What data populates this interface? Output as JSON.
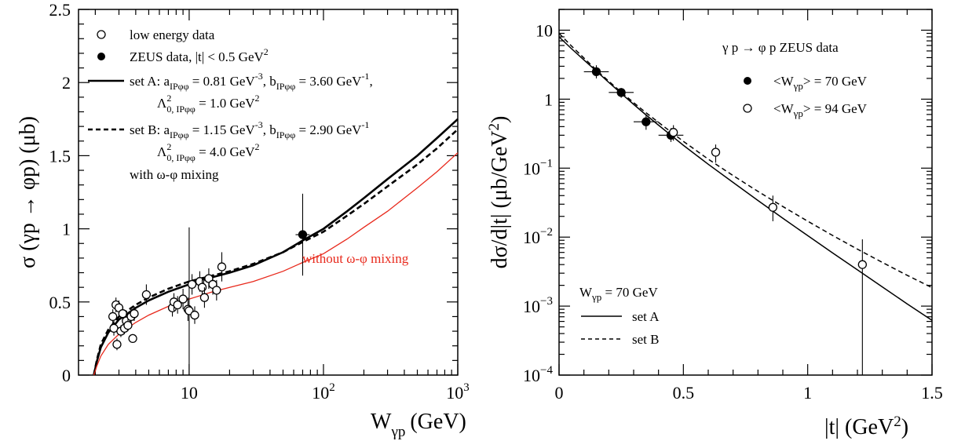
{
  "chart_data": [
    {
      "type": "scatter",
      "title": "",
      "xlabel": {
        "main": "W",
        "sub": "γp",
        "unit": "(GeV)"
      },
      "ylabel": "σ (γp → φp) (μb)",
      "xscale": "log",
      "xlim": [
        1.5,
        1000
      ],
      "ylim": [
        0,
        2.5
      ],
      "xticks": [
        {
          "v": 10,
          "label": "10",
          "sup": ""
        },
        {
          "v": 100,
          "label": "10",
          "sup": "2"
        },
        {
          "v": 1000,
          "label": "10",
          "sup": "3"
        }
      ],
      "yticks": [
        {
          "v": 0,
          "label": "0"
        },
        {
          "v": 0.5,
          "label": "0.5"
        },
        {
          "v": 1,
          "label": "1"
        },
        {
          "v": 1.5,
          "label": "1.5"
        },
        {
          "v": 2,
          "label": "2"
        },
        {
          "v": 2.5,
          "label": "2.5"
        }
      ],
      "legend": {
        "position": "top-left",
        "low_energy": "low energy data",
        "zeus": "ZEUS data,  |t| < 0.5 GeV",
        "zeus_sup": "2",
        "setA_line1": "set A: a",
        "setA_sub1": "IPφφ",
        "setA_val1": " = 0.81 GeV",
        "setA_sup1": "-3",
        "setA_b": ", b",
        "setA_sub2": "IPφφ",
        "setA_val2": " = 3.60 GeV",
        "setA_sup2": "-1",
        "setA_end": ",",
        "setA_line2": "Λ",
        "setA_line2_sup": "2",
        "setA_line2_sub": "0, IPφφ",
        "setA_line2_val": " = 1.0 GeV",
        "setA_line2_sup2": "2",
        "setB_line1": "set B: a",
        "setB_sub1": "IPφφ",
        "setB_val1": " = 1.15 GeV",
        "setB_sup1": "-3",
        "setB_b": ", b",
        "setB_sub2": "IPφφ",
        "setB_val2": " = 2.90 GeV",
        "setB_sup2": "-1",
        "setB_line2": "Λ",
        "setB_line2_sup": "2",
        "setB_line2_sub": "0, IPφφ",
        "setB_line2_val": " = 4.0 GeV",
        "setB_line2_sup2": "2",
        "mixing": "with  ω-φ mixing"
      },
      "annotation": {
        "text": "without  ω-φ mixing",
        "color": "#e8291c"
      },
      "series": [
        {
          "name": "set A",
          "kind": "line",
          "style": "solid",
          "color": "#000000",
          "x": [
            1.95,
            2.05,
            2.2,
            2.5,
            3,
            4,
            5,
            7,
            10,
            15,
            20,
            30,
            50,
            70,
            100,
            150,
            200,
            300,
            500,
            700,
            1000
          ],
          "y": [
            0.0,
            0.09,
            0.19,
            0.29,
            0.38,
            0.46,
            0.51,
            0.57,
            0.62,
            0.67,
            0.7,
            0.75,
            0.84,
            0.92,
            1.0,
            1.12,
            1.21,
            1.34,
            1.5,
            1.62,
            1.75
          ]
        },
        {
          "name": "set B",
          "kind": "line",
          "style": "dashed",
          "color": "#000000",
          "x": [
            1.95,
            2.05,
            2.2,
            2.5,
            3,
            4,
            5,
            7,
            10,
            15,
            20,
            30,
            50,
            70,
            100,
            150,
            200,
            300,
            500,
            700,
            1000
          ],
          "y": [
            0.0,
            0.1,
            0.21,
            0.31,
            0.4,
            0.48,
            0.53,
            0.59,
            0.64,
            0.68,
            0.71,
            0.76,
            0.84,
            0.91,
            0.98,
            1.09,
            1.17,
            1.29,
            1.44,
            1.55,
            1.68
          ]
        },
        {
          "name": "without ω-φ mixing",
          "kind": "line",
          "style": "solid",
          "color": "#e8291c",
          "x": [
            1.95,
            2.05,
            2.2,
            2.5,
            3,
            4,
            5,
            7,
            10,
            15,
            20,
            30,
            50,
            70,
            100,
            150,
            200,
            300,
            500,
            700,
            1000
          ],
          "y": [
            0.0,
            0.06,
            0.13,
            0.21,
            0.28,
            0.36,
            0.41,
            0.47,
            0.52,
            0.57,
            0.6,
            0.64,
            0.71,
            0.77,
            0.83,
            0.93,
            1.01,
            1.12,
            1.28,
            1.39,
            1.52
          ]
        },
        {
          "name": "low energy data",
          "kind": "points",
          "marker": "open",
          "points": [
            {
              "x": 2.7,
              "y": 0.4,
              "ey": 0.05
            },
            {
              "x": 2.75,
              "y": 0.32,
              "ey": 0.05
            },
            {
              "x": 2.85,
              "y": 0.48,
              "ey": 0.05
            },
            {
              "x": 2.9,
              "y": 0.21,
              "ey": 0.04
            },
            {
              "x": 3.0,
              "y": 0.46,
              "ey": 0.05
            },
            {
              "x": 3.1,
              "y": 0.3,
              "ey": 0.04
            },
            {
              "x": 3.2,
              "y": 0.42,
              "ey": 0.05
            },
            {
              "x": 3.3,
              "y": 0.32,
              "ey": 0.04
            },
            {
              "x": 3.4,
              "y": 0.37,
              "ey": 0.05
            },
            {
              "x": 3.5,
              "y": 0.34,
              "ey": 0.04
            },
            {
              "x": 3.7,
              "y": 0.4,
              "ey": 0.05
            },
            {
              "x": 3.8,
              "y": 0.25,
              "ey": 0.03
            },
            {
              "x": 3.9,
              "y": 0.42,
              "ey": 0.05
            },
            {
              "x": 4.8,
              "y": 0.55,
              "ey": 0.07
            },
            {
              "x": 7.5,
              "y": 0.46,
              "ey": 0.06
            },
            {
              "x": 7.7,
              "y": 0.5,
              "ey": 0.06
            },
            {
              "x": 8.2,
              "y": 0.48,
              "ey": 0.06
            },
            {
              "x": 9.0,
              "y": 0.52,
              "ey": 0.07
            },
            {
              "x": 9.8,
              "y": 0.45,
              "ey": 0.08
            },
            {
              "x": 10.0,
              "y": 0.44,
              "ey": 0.57
            },
            {
              "x": 10.5,
              "y": 0.62,
              "ey": 0.07
            },
            {
              "x": 11.0,
              "y": 0.41,
              "ey": 0.06
            },
            {
              "x": 12.0,
              "y": 0.64,
              "ey": 0.07
            },
            {
              "x": 12.5,
              "y": 0.6,
              "ey": 0.07
            },
            {
              "x": 13.0,
              "y": 0.53,
              "ey": 0.07
            },
            {
              "x": 14.0,
              "y": 0.66,
              "ey": 0.07
            },
            {
              "x": 15.0,
              "y": 0.62,
              "ey": 0.07
            },
            {
              "x": 16.0,
              "y": 0.58,
              "ey": 0.07
            },
            {
              "x": 17.5,
              "y": 0.74,
              "ey": 0.1
            }
          ]
        },
        {
          "name": "ZEUS data",
          "kind": "points",
          "marker": "filled",
          "points": [
            {
              "x": 70,
              "y": 0.96,
              "ey": 0.28,
              "ex": [
                62,
                79
              ]
            }
          ]
        }
      ]
    },
    {
      "type": "scatter",
      "title": "",
      "xlabel": {
        "main": "|t| (GeV",
        "sup": "2",
        "end": ")"
      },
      "ylabel": {
        "main": "dσ/d|t| (μb/GeV",
        "sup": "2",
        "end": ")"
      },
      "yscale": "log",
      "xlim": [
        0,
        1.5
      ],
      "ylim": [
        0.0001,
        20
      ],
      "xticks": [
        {
          "v": 0,
          "label": "0"
        },
        {
          "v": 0.5,
          "label": "0.5"
        },
        {
          "v": 1,
          "label": "1"
        },
        {
          "v": 1.5,
          "label": "1.5"
        }
      ],
      "yticks": [
        {
          "v": 0.0001,
          "label": "10",
          "sup": "−4"
        },
        {
          "v": 0.001,
          "label": "10",
          "sup": "−3"
        },
        {
          "v": 0.01,
          "label": "10",
          "sup": "−2"
        },
        {
          "v": 0.1,
          "label": "10",
          "sup": "−1"
        },
        {
          "v": 1,
          "label": "1",
          "sup": ""
        },
        {
          "v": 10,
          "label": "10",
          "sup": ""
        }
      ],
      "legend": {
        "position": "top-right",
        "reaction": "γ p → φ p    ZEUS data",
        "s70_a": "<W",
        "s70_sub": "γp",
        "s70_b": "> = 70 GeV",
        "s94_a": "<W",
        "s94_sub": "γp",
        "s94_b": "> = 94 GeV"
      },
      "legend2": {
        "position": "bottom-left",
        "w_a": "W",
        "w_sub": "γp",
        "w_b": " = 70 GeV",
        "setA": "set A",
        "setB": "set B"
      },
      "series": [
        {
          "name": "set A",
          "kind": "line",
          "style": "solid",
          "color": "#000000",
          "x": [
            0,
            0.05,
            0.1,
            0.15,
            0.2,
            0.25,
            0.3,
            0.35,
            0.4,
            0.45,
            0.5,
            0.6,
            0.7,
            0.8,
            0.9,
            1.0,
            1.1,
            1.2,
            1.3,
            1.4,
            1.5
          ],
          "y": [
            8.0,
            5.4,
            3.7,
            2.55,
            1.75,
            1.21,
            0.84,
            0.59,
            0.42,
            0.3,
            0.215,
            0.114,
            0.062,
            0.034,
            0.0188,
            0.0105,
            0.0059,
            0.00335,
            0.0019,
            0.00108,
            0.00062
          ]
        },
        {
          "name": "set B",
          "kind": "line",
          "style": "dashed",
          "color": "#000000",
          "x": [
            0,
            0.05,
            0.1,
            0.15,
            0.2,
            0.25,
            0.3,
            0.35,
            0.4,
            0.45,
            0.5,
            0.6,
            0.7,
            0.8,
            0.9,
            1.0,
            1.1,
            1.2,
            1.3,
            1.4,
            1.5
          ],
          "y": [
            9.0,
            5.9,
            3.95,
            2.65,
            1.82,
            1.26,
            0.89,
            0.635,
            0.46,
            0.335,
            0.245,
            0.135,
            0.078,
            0.046,
            0.0278,
            0.017,
            0.0106,
            0.0067,
            0.0043,
            0.0028,
            0.00185
          ]
        },
        {
          "name": "<Wγp> = 70 GeV",
          "kind": "points",
          "marker": "filled",
          "points": [
            {
              "x": 0.15,
              "y": 2.5,
              "ey": [
                2.0,
                3.1
              ],
              "ex": [
                0.1,
                0.2
              ]
            },
            {
              "x": 0.25,
              "y": 1.25,
              "ey": [
                1.05,
                1.45
              ],
              "ex": [
                0.2,
                0.3
              ]
            },
            {
              "x": 0.35,
              "y": 0.47,
              "ey": [
                0.36,
                0.6
              ],
              "ex": [
                0.3,
                0.4
              ]
            },
            {
              "x": 0.45,
              "y": 0.3,
              "ey": [
                0.24,
                0.38
              ],
              "ex": [
                0.4,
                0.5
              ]
            }
          ]
        },
        {
          "name": "<Wγp> = 94 GeV",
          "kind": "points",
          "marker": "open",
          "points": [
            {
              "x": 0.46,
              "y": 0.33,
              "ey": [
                0.25,
                0.42
              ]
            },
            {
              "x": 0.63,
              "y": 0.17,
              "ey": [
                0.12,
                0.22
              ]
            },
            {
              "x": 0.86,
              "y": 0.027,
              "ey": [
                0.017,
                0.04
              ]
            },
            {
              "x": 1.22,
              "y": 0.004,
              "ey": [
                0.0001,
                0.0093
              ]
            }
          ]
        }
      ]
    }
  ]
}
